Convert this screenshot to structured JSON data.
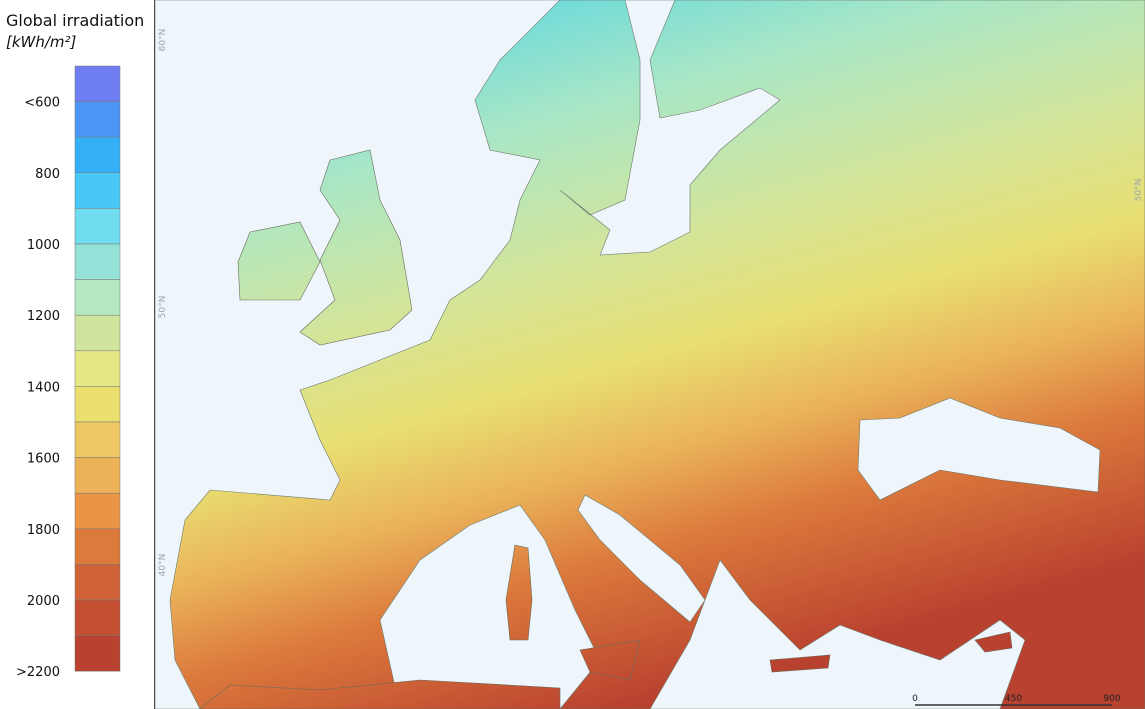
{
  "legend": {
    "title": "Global irradiation",
    "unit": "[kWh/m²]",
    "colors": [
      "#6e7ef0",
      "#4b96f5",
      "#35aff5",
      "#4ac8f5",
      "#6fdcf0",
      "#95e3d8",
      "#b5e8c0",
      "#cfe59e",
      "#e3e884",
      "#ebdf70",
      "#edc865",
      "#ecb258",
      "#ea9448",
      "#dc7a3c",
      "#cf6337",
      "#c44f33",
      "#b9412f"
    ],
    "labels": [
      "<600",
      "800",
      "1000",
      "1200",
      "1400",
      "1600",
      "1800",
      "2000",
      ">2200"
    ]
  },
  "map": {
    "graticule_labels": [
      "60°N",
      "50°N",
      "40°N",
      "50°N"
    ],
    "scale_bar": [
      "0",
      "450",
      "900"
    ]
  }
}
